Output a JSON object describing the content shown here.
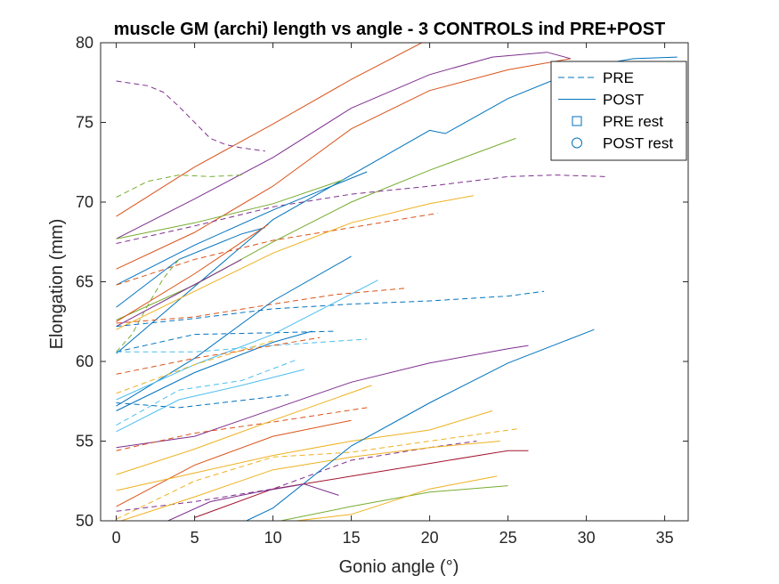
{
  "chart_data": {
    "type": "line",
    "title": "muscle GM (archi) length vs angle - 3 CONTROLS ind PRE+POST",
    "xlabel": "Gonio angle (°)",
    "ylabel": "Elongation (mm)",
    "xlim": [
      -1,
      36.5
    ],
    "ylim": [
      50,
      80
    ],
    "xticks": [
      0,
      5,
      10,
      15,
      20,
      25,
      30,
      35
    ],
    "yticks": [
      50,
      55,
      60,
      65,
      70,
      75,
      80
    ],
    "legend": {
      "placement": "top-right",
      "entries": [
        {
          "label": "PRE",
          "style": "dashed-line"
        },
        {
          "label": "POST",
          "style": "solid-line"
        },
        {
          "label": "PRE rest",
          "style": "square-marker"
        },
        {
          "label": "POST rest",
          "style": "circle-marker"
        }
      ],
      "color": "#0072BD"
    },
    "series": [
      {
        "color": "#D95319",
        "dash": false,
        "x": [
          0,
          5,
          10,
          15,
          19.5
        ],
        "y": [
          69.1,
          72.2,
          74.9,
          77.7,
          80.0
        ]
      },
      {
        "color": "#7E2F8E",
        "dash": false,
        "x": [
          0,
          5,
          10,
          15,
          20,
          24,
          27.5,
          29
        ],
        "y": [
          67.7,
          70.2,
          72.8,
          75.9,
          78.0,
          79.1,
          79.4,
          79.0
        ]
      },
      {
        "color": "#D95319",
        "dash": false,
        "x": [
          0,
          5,
          10,
          15,
          20,
          25,
          29
        ],
        "y": [
          65.8,
          68.1,
          71.0,
          74.6,
          77.0,
          78.3,
          79.0
        ]
      },
      {
        "color": "#0072BD",
        "dash": false,
        "x": [
          0,
          5,
          10,
          15,
          20,
          21,
          25,
          30,
          33,
          35.8
        ],
        "y": [
          60.5,
          64.7,
          68.9,
          71.7,
          74.5,
          74.3,
          76.5,
          78.5,
          79.0,
          79.1
        ]
      },
      {
        "color": "#77AC30",
        "dash": false,
        "x": [
          0,
          5,
          10,
          15,
          20,
          25.5
        ],
        "y": [
          62.6,
          64.8,
          67.5,
          70.0,
          72.0,
          74.0
        ]
      },
      {
        "color": "#7E2F8E",
        "dash": true,
        "x": [
          0,
          2,
          3,
          4,
          5,
          6,
          7,
          8,
          9.5
        ],
        "y": [
          77.6,
          77.3,
          76.9,
          76.0,
          75.0,
          74.0,
          73.6,
          73.4,
          73.2
        ]
      },
      {
        "color": "#77AC30",
        "dash": true,
        "x": [
          0,
          2,
          4,
          6,
          8
        ],
        "y": [
          70.3,
          71.3,
          71.7,
          71.6,
          71.7
        ]
      },
      {
        "color": "#7E2F8E",
        "dash": true,
        "x": [
          0,
          5,
          10,
          15,
          20,
          25,
          28,
          31.3
        ],
        "y": [
          67.4,
          68.5,
          69.7,
          70.5,
          71.0,
          71.6,
          71.7,
          71.6
        ]
      },
      {
        "color": "#77AC30",
        "dash": false,
        "x": [
          0,
          5,
          10,
          14.5
        ],
        "y": [
          67.7,
          68.7,
          69.9,
          71.4
        ]
      },
      {
        "color": "#0072BD",
        "dash": false,
        "x": [
          0,
          5,
          10,
          16
        ],
        "y": [
          64.8,
          67.3,
          69.5,
          71.9
        ]
      },
      {
        "color": "#D95319",
        "dash": true,
        "x": [
          0,
          5,
          10,
          15,
          20.5
        ],
        "y": [
          64.8,
          66.4,
          67.6,
          68.4,
          69.3
        ]
      },
      {
        "color": "#EDB120",
        "dash": false,
        "x": [
          0,
          5,
          10,
          15,
          20,
          22.8
        ],
        "y": [
          62.0,
          64.4,
          66.8,
          68.7,
          69.9,
          70.4
        ]
      },
      {
        "color": "#0072BD",
        "dash": false,
        "x": [
          0,
          4,
          8,
          9.5
        ],
        "y": [
          63.4,
          66.4,
          68.0,
          68.4
        ]
      },
      {
        "color": "#D95319",
        "dash": false,
        "x": [
          0,
          5,
          9.7
        ],
        "y": [
          62.5,
          65.5,
          68.6
        ]
      },
      {
        "color": "#7E2F8E",
        "dash": false,
        "x": [
          0,
          4,
          8
        ],
        "y": [
          62.2,
          64.3,
          66.4
        ]
      },
      {
        "color": "#77AC30",
        "dash": true,
        "x": [
          0,
          1,
          2,
          3,
          4
        ],
        "y": [
          60.6,
          61.7,
          63.5,
          65.2,
          66.4
        ]
      },
      {
        "color": "#D95319",
        "dash": true,
        "x": [
          0,
          5,
          10,
          14,
          18.5
        ],
        "y": [
          62.4,
          62.8,
          63.6,
          64.2,
          64.6
        ]
      },
      {
        "color": "#0072BD",
        "dash": true,
        "x": [
          0,
          5,
          10,
          15,
          20,
          25,
          27.3
        ],
        "y": [
          62.2,
          62.7,
          63.3,
          63.6,
          63.8,
          64.1,
          64.4
        ]
      },
      {
        "color": "#0072BD",
        "dash": false,
        "x": [
          0,
          5,
          10,
          15
        ],
        "y": [
          57.2,
          60.2,
          63.8,
          66.6
        ]
      },
      {
        "color": "#4DBEEE",
        "dash": false,
        "x": [
          0,
          5,
          10,
          16.7
        ],
        "y": [
          57.6,
          59.8,
          61.7,
          65.1
        ]
      },
      {
        "color": "#0072BD",
        "dash": true,
        "x": [
          0,
          5,
          10,
          14
        ],
        "y": [
          60.6,
          61.7,
          61.8,
          61.9
        ]
      },
      {
        "color": "#4DBEEE",
        "dash": true,
        "x": [
          0,
          5,
          10,
          16
        ],
        "y": [
          60.6,
          60.6,
          61.0,
          61.4
        ]
      },
      {
        "color": "#0072BD",
        "dash": false,
        "x": [
          0,
          5,
          10,
          12.5
        ],
        "y": [
          56.9,
          59.3,
          61.2,
          61.9
        ]
      },
      {
        "color": "#4DBEEE",
        "dash": false,
        "x": [
          0,
          4,
          8,
          12
        ],
        "y": [
          55.6,
          57.6,
          58.5,
          59.5
        ]
      },
      {
        "color": "#4DBEEE",
        "dash": true,
        "x": [
          0,
          4,
          8,
          11.5
        ],
        "y": [
          56.0,
          58.2,
          58.8,
          60.1
        ]
      },
      {
        "color": "#D95319",
        "dash": true,
        "x": [
          0,
          5,
          10,
          13
        ],
        "y": [
          59.2,
          60.2,
          61.0,
          61.5
        ]
      },
      {
        "color": "#EDB120",
        "dash": true,
        "x": [
          0,
          5,
          10
        ],
        "y": [
          58.0,
          59.8,
          61.3
        ]
      },
      {
        "color": "#0072BD",
        "dash": true,
        "x": [
          0,
          4,
          7.5,
          11
        ],
        "y": [
          57.4,
          57.1,
          57.5,
          57.9
        ]
      },
      {
        "color": "#7E2F8E",
        "dash": false,
        "x": [
          0,
          5,
          10,
          15,
          20,
          25,
          26.3
        ],
        "y": [
          54.6,
          55.3,
          57.0,
          58.7,
          59.9,
          60.8,
          61.0
        ]
      },
      {
        "color": "#D95319",
        "dash": true,
        "x": [
          0,
          5,
          10,
          16
        ],
        "y": [
          54.4,
          55.5,
          56.2,
          57.1
        ]
      },
      {
        "color": "#EDB120",
        "dash": false,
        "x": [
          0,
          5,
          10,
          16.3
        ],
        "y": [
          52.9,
          54.5,
          56.3,
          58.5
        ]
      },
      {
        "color": "#D95319",
        "dash": false,
        "x": [
          0,
          5,
          10,
          15
        ],
        "y": [
          50.9,
          53.5,
          55.3,
          56.3
        ]
      },
      {
        "color": "#EDB120",
        "dash": false,
        "x": [
          0,
          5,
          10,
          15,
          20,
          24
        ],
        "y": [
          51.9,
          53.0,
          54.1,
          55.0,
          55.7,
          56.9
        ]
      },
      {
        "color": "#EDB120",
        "dash": true,
        "x": [
          0,
          5,
          10,
          15,
          20,
          25.8
        ],
        "y": [
          50.1,
          52.5,
          54.0,
          54.3,
          55.0,
          55.8
        ]
      },
      {
        "color": "#7E2F8E",
        "dash": true,
        "x": [
          0,
          5,
          10,
          15,
          20,
          23
        ],
        "y": [
          50.6,
          51.2,
          52.0,
          53.8,
          54.6,
          55.0
        ]
      },
      {
        "color": "#EDB120",
        "dash": false,
        "x": [
          0,
          5,
          10,
          15,
          20,
          24.5
        ],
        "y": [
          49.9,
          51.5,
          53.2,
          54.0,
          54.6,
          55.0
        ]
      },
      {
        "color": "#0072BD",
        "dash": false,
        "x": [
          8.3,
          10,
          15,
          20,
          25,
          30.5
        ],
        "y": [
          50.0,
          50.8,
          54.7,
          57.4,
          59.9,
          62.0
        ]
      },
      {
        "color": "#A2142F",
        "dash": false,
        "x": [
          5,
          10,
          15,
          20,
          25,
          26.3
        ],
        "y": [
          50.2,
          52.0,
          52.8,
          53.6,
          54.4,
          54.4
        ]
      },
      {
        "color": "#7E2F8E",
        "dash": false,
        "x": [
          3.3,
          6,
          9,
          12,
          14.2
        ],
        "y": [
          50.0,
          51.2,
          51.8,
          52.3,
          51.6
        ]
      },
      {
        "color": "#77AC30",
        "dash": false,
        "x": [
          10.5,
          15,
          20,
          25
        ],
        "y": [
          50.0,
          50.9,
          51.8,
          52.2
        ]
      },
      {
        "color": "#EDB120",
        "dash": false,
        "x": [
          11.5,
          15,
          20,
          24.3
        ],
        "y": [
          50.0,
          50.4,
          52.0,
          52.8
        ]
      }
    ]
  }
}
